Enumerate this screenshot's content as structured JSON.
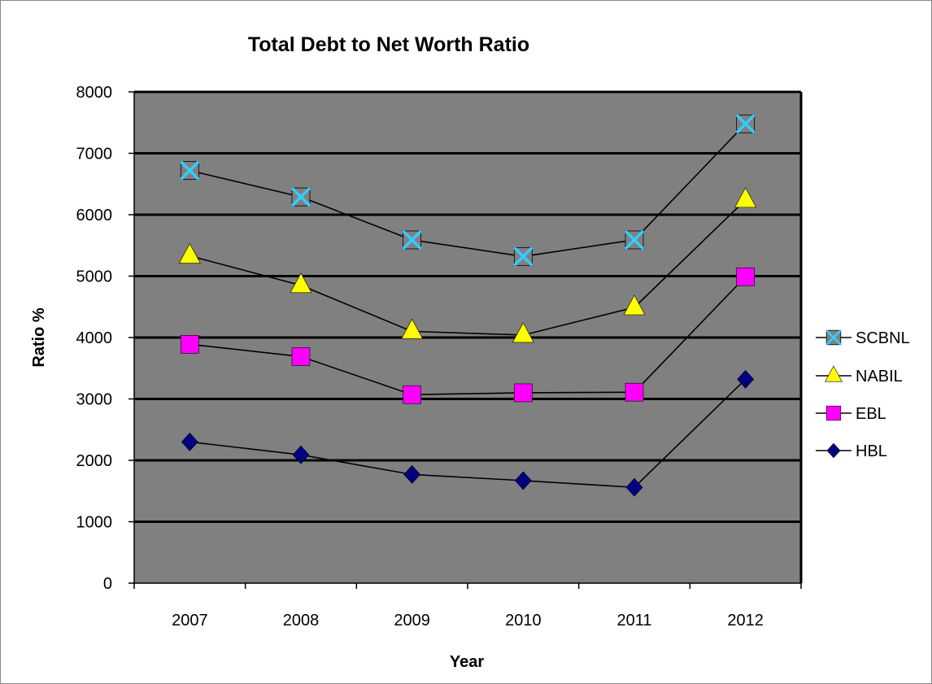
{
  "chart_data": {
    "type": "line",
    "title": "Total Debt to Net Worth Ratio",
    "xlabel": "Year",
    "ylabel": "Ratio %",
    "categories": [
      "2007",
      "2008",
      "2009",
      "2010",
      "2011",
      "2012"
    ],
    "ylim": [
      0,
      8000
    ],
    "yticks": [
      0,
      1000,
      2000,
      3000,
      4000,
      5000,
      6000,
      7000,
      8000
    ],
    "grid": true,
    "legend_position": "right",
    "plot_background": "#808080",
    "series": [
      {
        "name": "SCBNL",
        "marker": "x-square",
        "color": "#33CCFF",
        "values": [
          6720,
          6290,
          5590,
          5320,
          5590,
          7480
        ]
      },
      {
        "name": "NABIL",
        "marker": "triangle",
        "color": "#FFFF00",
        "values": [
          5330,
          4850,
          4100,
          4040,
          4490,
          6240
        ]
      },
      {
        "name": "EBL",
        "marker": "square",
        "color": "#FF00FF",
        "values": [
          3890,
          3690,
          3070,
          3100,
          3110,
          4990
        ]
      },
      {
        "name": "HBL",
        "marker": "diamond",
        "color": "#000080",
        "values": [
          2300,
          2090,
          1770,
          1670,
          1560,
          3320
        ]
      }
    ]
  }
}
